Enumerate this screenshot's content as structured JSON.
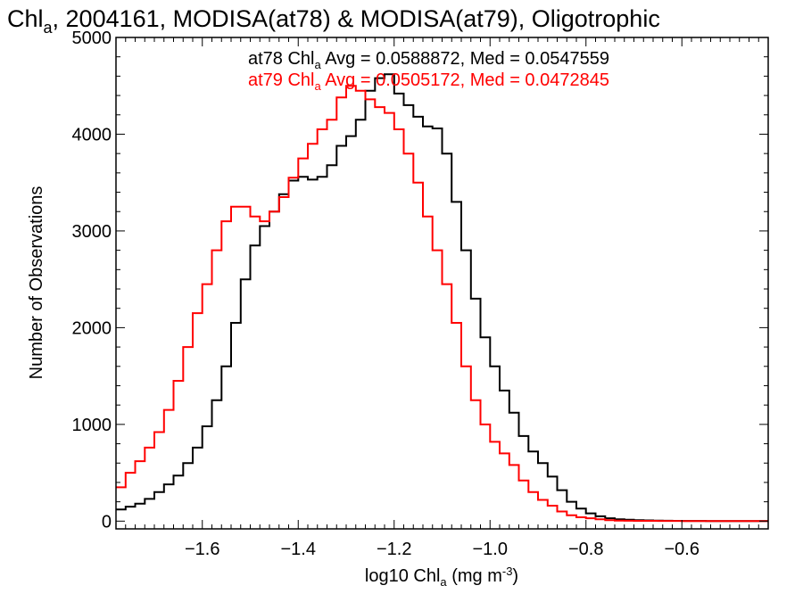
{
  "chart_data": {
    "type": "line",
    "title": {
      "pre": "Chl",
      "sub": "a",
      "post": ", 2004161, MODISA(at78) & MODISA(at79), Oligotrophic"
    },
    "xlabel": {
      "pre": "log10 Chl",
      "sub": "a",
      "mid": " (mg m",
      "sup": "-3",
      "post": ")"
    },
    "ylabel": "Number of Observations",
    "xlim": [
      -1.78,
      -0.42
    ],
    "ylim": [
      -80,
      5000
    ],
    "xticks": [
      -1.6,
      -1.4,
      -1.2,
      -1.0,
      -0.8,
      -0.6
    ],
    "xtick_labels": [
      "−1.6",
      "−1.4",
      "−1.2",
      "−1.0",
      "−0.8",
      "−0.6"
    ],
    "yticks": [
      0,
      1000,
      2000,
      3000,
      4000,
      5000
    ],
    "ytick_labels": [
      "0",
      "1000",
      "2000",
      "3000",
      "4000",
      "5000"
    ],
    "grid": false,
    "legend": "top-center",
    "series": [
      {
        "name": "at78",
        "color": "#000000",
        "stats": {
          "pre": "at78 Chl",
          "sub": "a",
          "post": " Avg = 0.0588872, Med = 0.0547559"
        },
        "x": [
          -1.78,
          -1.76,
          -1.74,
          -1.72,
          -1.7,
          -1.68,
          -1.66,
          -1.64,
          -1.62,
          -1.6,
          -1.58,
          -1.56,
          -1.54,
          -1.52,
          -1.5,
          -1.48,
          -1.46,
          -1.44,
          -1.42,
          -1.4,
          -1.38,
          -1.36,
          -1.34,
          -1.32,
          -1.3,
          -1.28,
          -1.26,
          -1.24,
          -1.22,
          -1.2,
          -1.18,
          -1.16,
          -1.14,
          -1.12,
          -1.1,
          -1.08,
          -1.06,
          -1.04,
          -1.02,
          -1.0,
          -0.98,
          -0.96,
          -0.94,
          -0.92,
          -0.9,
          -0.88,
          -0.86,
          -0.84,
          -0.82,
          -0.8,
          -0.78,
          -0.76,
          -0.74,
          -0.72,
          -0.7,
          -0.68,
          -0.66,
          -0.64,
          -0.62,
          -0.6,
          -0.55,
          -0.5,
          -0.45,
          -0.42
        ],
        "y": [
          120,
          150,
          180,
          230,
          300,
          380,
          470,
          600,
          760,
          980,
          1250,
          1600,
          2050,
          2500,
          2850,
          3050,
          3200,
          3380,
          3520,
          3560,
          3530,
          3560,
          3680,
          3880,
          3980,
          4150,
          4450,
          4580,
          4620,
          4420,
          4300,
          4180,
          4080,
          4060,
          3800,
          3300,
          2800,
          2300,
          1900,
          1600,
          1350,
          1120,
          880,
          720,
          600,
          460,
          320,
          200,
          130,
          80,
          50,
          30,
          20,
          15,
          10,
          8,
          5,
          4,
          3,
          2,
          1,
          0,
          0,
          0
        ]
      },
      {
        "name": "at79",
        "color": "#ff0000",
        "stats": {
          "pre": "at79 Chl",
          "sub": "a",
          "post": " Avg = 0.0505172, Med = 0.0472845"
        },
        "x": [
          -1.78,
          -1.76,
          -1.74,
          -1.72,
          -1.7,
          -1.68,
          -1.66,
          -1.64,
          -1.62,
          -1.6,
          -1.58,
          -1.56,
          -1.54,
          -1.52,
          -1.5,
          -1.48,
          -1.46,
          -1.44,
          -1.42,
          -1.4,
          -1.38,
          -1.36,
          -1.34,
          -1.32,
          -1.3,
          -1.28,
          -1.26,
          -1.24,
          -1.22,
          -1.2,
          -1.18,
          -1.16,
          -1.14,
          -1.12,
          -1.1,
          -1.08,
          -1.06,
          -1.04,
          -1.02,
          -1.0,
          -0.98,
          -0.96,
          -0.94,
          -0.92,
          -0.9,
          -0.88,
          -0.86,
          -0.84,
          -0.82,
          -0.8,
          -0.78,
          -0.76,
          -0.74,
          -0.72,
          -0.7,
          -0.65,
          -0.6,
          -0.55,
          -0.5,
          -0.45,
          -0.42
        ],
        "y": [
          350,
          500,
          620,
          760,
          920,
          1150,
          1450,
          1800,
          2150,
          2450,
          2800,
          3100,
          3250,
          3250,
          3150,
          3100,
          3200,
          3350,
          3550,
          3750,
          3900,
          4050,
          4150,
          4380,
          4500,
          4450,
          4360,
          4280,
          4220,
          4050,
          3800,
          3500,
          3150,
          2800,
          2450,
          2050,
          1600,
          1250,
          1000,
          820,
          700,
          580,
          420,
          300,
          220,
          160,
          100,
          60,
          40,
          30,
          20,
          10,
          6,
          4,
          3,
          2,
          1,
          0,
          0,
          0,
          0
        ]
      }
    ]
  }
}
